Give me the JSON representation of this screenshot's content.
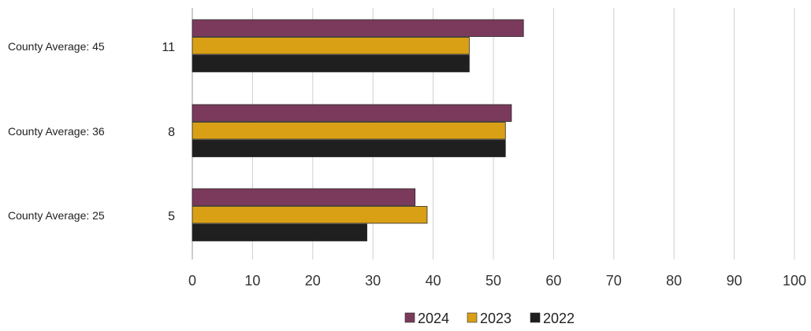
{
  "chart_data": {
    "type": "bar",
    "orientation": "horizontal",
    "categories": [
      "11",
      "8",
      "5"
    ],
    "side_labels": [
      "County Average: 45",
      "County Average: 36",
      "County Average: 25"
    ],
    "series": [
      {
        "name": "2024",
        "color": "#7b3a5c",
        "values": [
          55,
          53,
          37
        ]
      },
      {
        "name": "2023",
        "color": "#d9a016",
        "values": [
          46,
          52,
          39
        ]
      },
      {
        "name": "2022",
        "color": "#1f1f1f",
        "values": [
          46,
          52,
          29
        ]
      }
    ],
    "xlim": [
      0,
      100
    ],
    "xticks": [
      0,
      10,
      20,
      30,
      40,
      50,
      60,
      70,
      80,
      90,
      100
    ],
    "grid": "vertical",
    "legend": "bottom-center"
  }
}
